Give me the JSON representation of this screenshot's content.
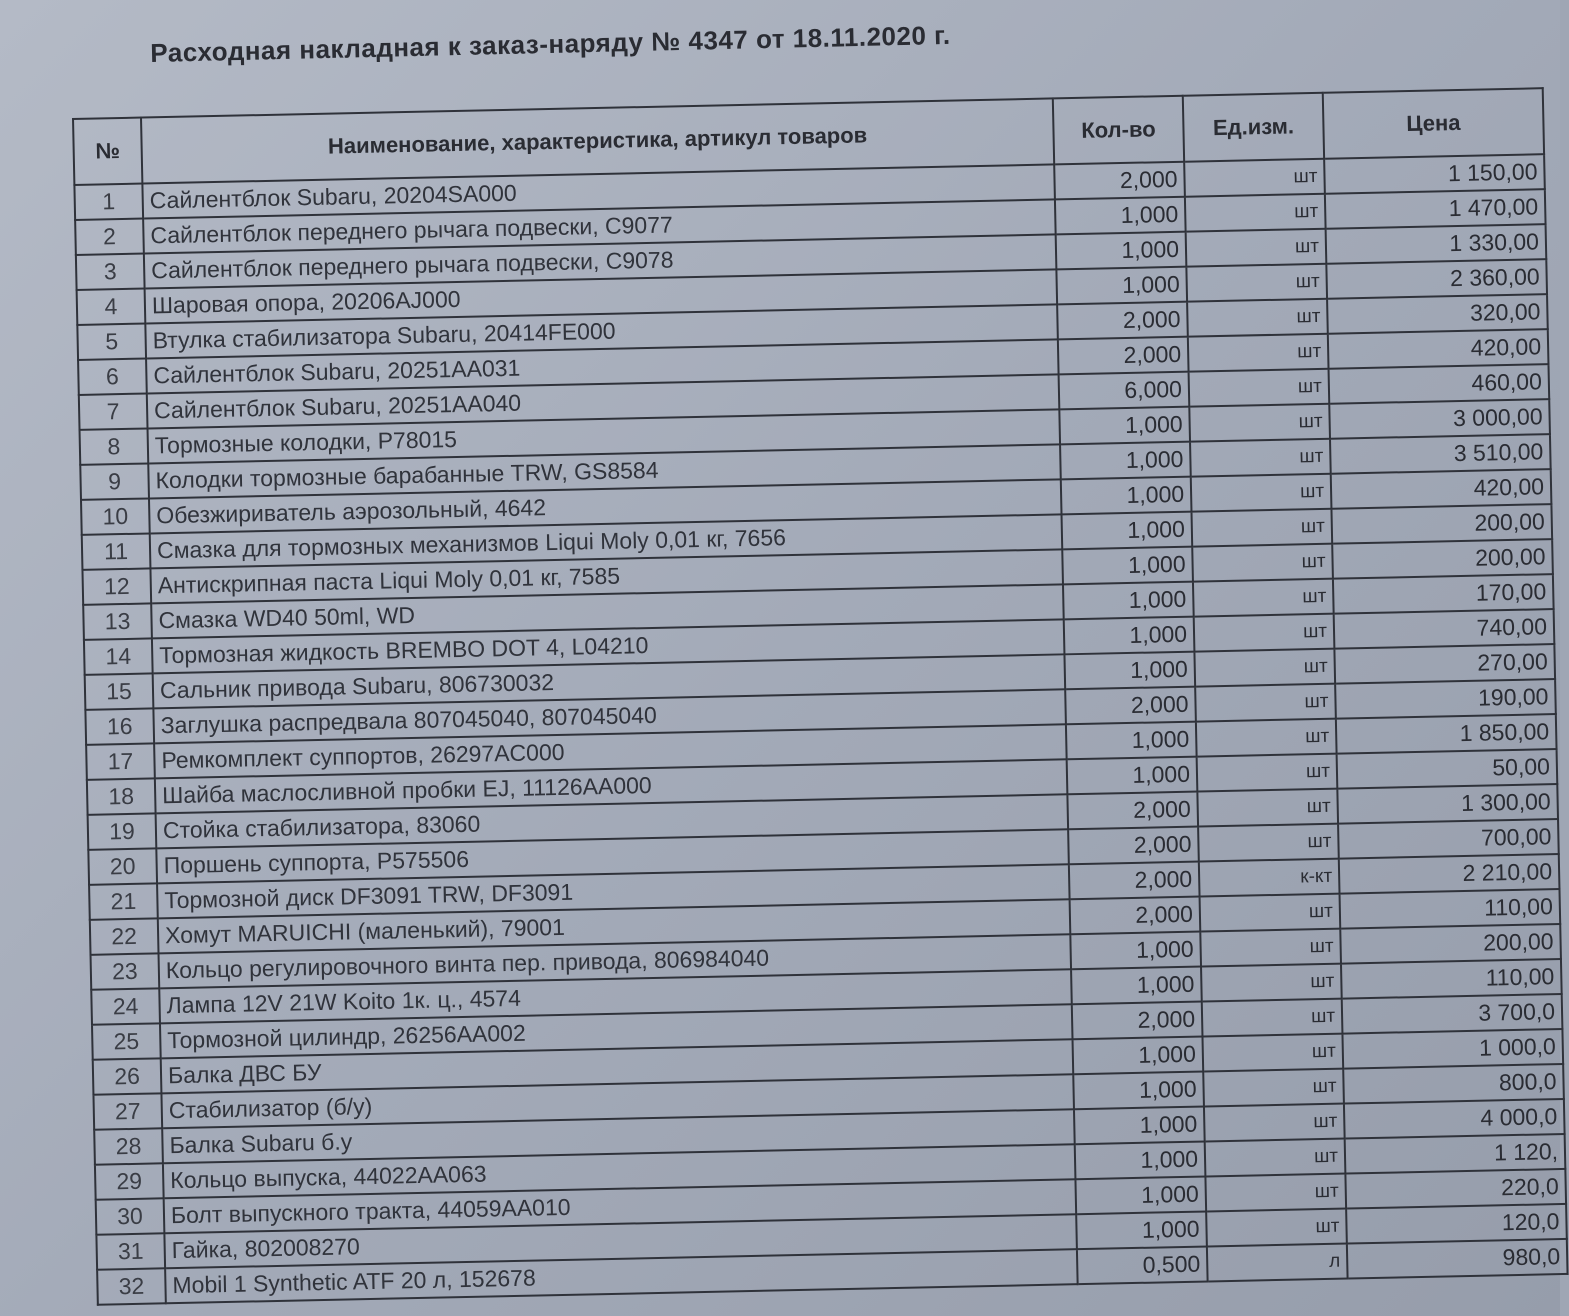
{
  "document": {
    "title": "Расходная накладная к заказ-наряду №  4347 от 18.11.2020 г.",
    "columns": [
      "№",
      "Наименование, характеристика, артикул товаров",
      "Кол-во",
      "Ед.изм.",
      "Цена"
    ],
    "rows": [
      {
        "n": "1",
        "name": "Сайлентблок Subaru, 20204SA000",
        "qty": "2,000",
        "unit": "шт",
        "price": "1 150,00"
      },
      {
        "n": "2",
        "name": "Сайлентблок переднего рычага подвески, C9077",
        "qty": "1,000",
        "unit": "шт",
        "price": "1 470,00"
      },
      {
        "n": "3",
        "name": "Сайлентблок переднего рычага подвески, C9078",
        "qty": "1,000",
        "unit": "шт",
        "price": "1 330,00"
      },
      {
        "n": "4",
        "name": "Шаровая опора, 20206AJ000",
        "qty": "1,000",
        "unit": "шт",
        "price": "2 360,00"
      },
      {
        "n": "5",
        "name": "Втулка стабилизатора Subaru, 20414FE000",
        "qty": "2,000",
        "unit": "шт",
        "price": "320,00"
      },
      {
        "n": "6",
        "name": "Сайлентблок Subaru, 20251AA031",
        "qty": "2,000",
        "unit": "шт",
        "price": "420,00"
      },
      {
        "n": "7",
        "name": "Сайлентблок Subaru, 20251AA040",
        "qty": "6,000",
        "unit": "шт",
        "price": "460,00"
      },
      {
        "n": "8",
        "name": "Тормозные колодки, P78015",
        "qty": "1,000",
        "unit": "шт",
        "price": "3 000,00"
      },
      {
        "n": "9",
        "name": "Колодки тормозные барабанные TRW, GS8584",
        "qty": "1,000",
        "unit": "шт",
        "price": "3 510,00"
      },
      {
        "n": "10",
        "name": "Обезжириватель аэрозольный, 4642",
        "qty": "1,000",
        "unit": "шт",
        "price": "420,00"
      },
      {
        "n": "11",
        "name": "Смазка для тормозных механизмов Liqui Moly 0,01 кг, 7656",
        "qty": "1,000",
        "unit": "шт",
        "price": "200,00"
      },
      {
        "n": "12",
        "name": "Антискрипная паста Liqui Moly 0,01 кг, 7585",
        "qty": "1,000",
        "unit": "шт",
        "price": "200,00"
      },
      {
        "n": "13",
        "name": "Смазка WD40 50ml, WD",
        "qty": "1,000",
        "unit": "шт",
        "price": "170,00"
      },
      {
        "n": "14",
        "name": "Тормозная жидкость BREMBO DOT 4, L04210",
        "qty": "1,000",
        "unit": "шт",
        "price": "740,00"
      },
      {
        "n": "15",
        "name": "Сальник привода Subaru, 806730032",
        "qty": "1,000",
        "unit": "шт",
        "price": "270,00"
      },
      {
        "n": "16",
        "name": "Заглушка распредвала 807045040, 807045040",
        "qty": "2,000",
        "unit": "шт",
        "price": "190,00"
      },
      {
        "n": "17",
        "name": "Ремкомплект суппортов, 26297AC000",
        "qty": "1,000",
        "unit": "шт",
        "price": "1 850,00"
      },
      {
        "n": "18",
        "name": "Шайба маслосливной пробки EJ, 11126AA000",
        "qty": "1,000",
        "unit": "шт",
        "price": "50,00"
      },
      {
        "n": "19",
        "name": "Стойка стабилизатора, 83060",
        "qty": "2,000",
        "unit": "шт",
        "price": "1 300,00"
      },
      {
        "n": "20",
        "name": "Поршень суппорта, P575506",
        "qty": "2,000",
        "unit": "шт",
        "price": "700,00"
      },
      {
        "n": "21",
        "name": "Тормозной диск DF3091 TRW, DF3091",
        "qty": "2,000",
        "unit": "к-кт",
        "price": "2 210,00"
      },
      {
        "n": "22",
        "name": "Хомут MARUICHI (маленький), 79001",
        "qty": "2,000",
        "unit": "шт",
        "price": "110,00"
      },
      {
        "n": "23",
        "name": "Кольцо регулировочного винта пер. привода, 806984040",
        "qty": "1,000",
        "unit": "шт",
        "price": "200,00"
      },
      {
        "n": "24",
        "name": "Лампа 12V 21W Koito 1к. ц., 4574",
        "qty": "1,000",
        "unit": "шт",
        "price": "110,00"
      },
      {
        "n": "25",
        "name": "Тормозной цилиндр, 26256AA002",
        "qty": "2,000",
        "unit": "шт",
        "price": "3 700,0"
      },
      {
        "n": "26",
        "name": "Балка ДВС БУ",
        "qty": "1,000",
        "unit": "шт",
        "price": "1 000,0"
      },
      {
        "n": "27",
        "name": "Стабилизатор  (б/у)",
        "qty": "1,000",
        "unit": "шт",
        "price": "800,0"
      },
      {
        "n": "28",
        "name": "Балка Subaru б.у",
        "qty": "1,000",
        "unit": "шт",
        "price": "4 000,0"
      },
      {
        "n": "29",
        "name": "Кольцо выпуска, 44022AA063",
        "qty": "1,000",
        "unit": "шт",
        "price": "1 120,"
      },
      {
        "n": "30",
        "name": "Болт выпускного тракта, 44059AA010",
        "qty": "1,000",
        "unit": "шт",
        "price": "220,0"
      },
      {
        "n": "31",
        "name": "Гайка, 802008270",
        "qty": "1,000",
        "unit": "шт",
        "price": "120,0"
      },
      {
        "n": "32",
        "name": "Mobil  1 Synthetic  ATF  20 л, 152678",
        "qty": "0,500",
        "unit": "л",
        "price": "980,0"
      }
    ]
  }
}
